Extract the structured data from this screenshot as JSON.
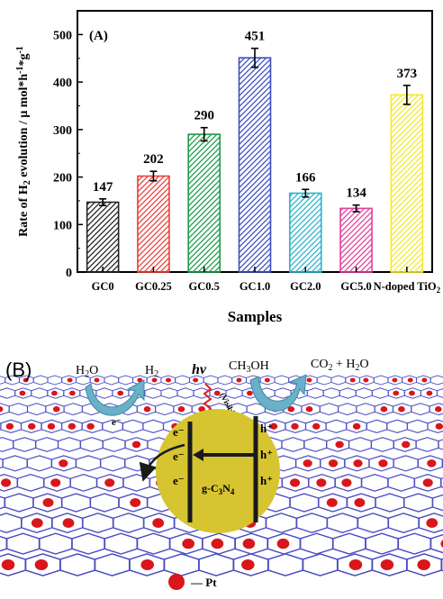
{
  "chart_data": {
    "type": "bar",
    "panel_label": "(A)",
    "categories": [
      "GC0",
      "GC0.25",
      "GC0.5",
      "GC1.0",
      "GC2.0",
      "GC5.0",
      "N-doped TiO2"
    ],
    "values": [
      147,
      202,
      290,
      451,
      166,
      134,
      373
    ],
    "value_labels": [
      "147",
      "202",
      "290",
      "451",
      "166",
      "134",
      "373"
    ],
    "error": [
      7,
      10,
      14,
      20,
      8,
      7,
      20
    ],
    "bar_colors": [
      "#222222",
      "#e8403a",
      "#1f9a4a",
      "#3a4fc0",
      "#2bb3c9",
      "#e0409a",
      "#f2ea2a"
    ],
    "xlabel": "Samples",
    "ylabel": "Rate of H2 evolution / μ mol*h-1*g-1",
    "ylim": [
      0,
      550
    ],
    "yticks": [
      "0",
      "100",
      "200",
      "300",
      "400",
      "500"
    ],
    "hatch": "diagonal",
    "grid": false,
    "legend": "none"
  },
  "scheme": {
    "panel_label": "(B)",
    "h2o_label": "H2O",
    "h2_label": "H2",
    "hv_label": "hν",
    "visible_label": "(Visible)",
    "ch3oh_label": "CH3OH",
    "products_label": "CO2 + H2O",
    "electron_label": "e⁻",
    "hole_label": "h⁺",
    "e_sheet_label": "e⁻",
    "catalyst_label": "g-C3N4",
    "legend_label": "— Pt",
    "colors": {
      "sphere": "#d6c531",
      "pt": "#d8161b",
      "lattice": "#4a4cc2",
      "arrow": "#6ab0c8"
    }
  }
}
